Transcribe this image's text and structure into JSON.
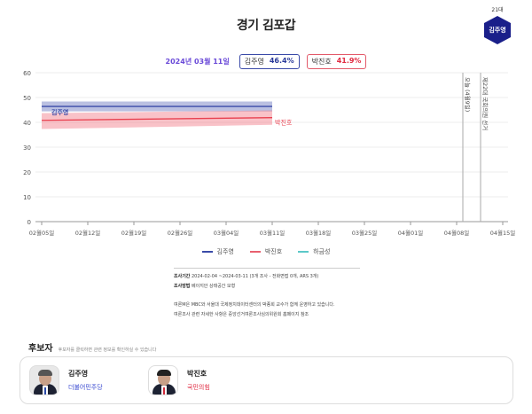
{
  "header": {
    "title": "경기 김포갑",
    "badge": {
      "era": "21대",
      "name": "김주영",
      "color": "#1a1f8a"
    }
  },
  "summary": {
    "date": "2024년 03월 11일",
    "results": [
      {
        "name": "김주영",
        "pct": "46.4%",
        "color": "#2a3a9a"
      },
      {
        "name": "박진호",
        "pct": "41.9%",
        "color": "#e02a40"
      }
    ]
  },
  "chart_data": {
    "type": "line",
    "title": "경기 김포갑",
    "xlabel": "",
    "ylabel": "",
    "ylim": [
      0,
      60
    ],
    "yticks": [
      0,
      10,
      20,
      30,
      40,
      50,
      60
    ],
    "grid": true,
    "x_tick_labels": [
      "02월05일",
      "02월12일",
      "02월19일",
      "02월26일",
      "03월04일",
      "03월11일",
      "03월18일",
      "03월25일",
      "04월01일",
      "04월08일",
      "04월15일"
    ],
    "x": [
      "02월05일",
      "03월11일"
    ],
    "series": [
      {
        "name": "김주영",
        "color": "#3a4aa8",
        "values": [
          46.4,
          46.4
        ],
        "band_low": [
          44.4,
          44.4
        ],
        "band_high": [
          48.4,
          48.4
        ],
        "label_position": "start"
      },
      {
        "name": "박진호",
        "color": "#e8404f",
        "values": [
          40.8,
          41.9
        ],
        "band_low": [
          37.3,
          39.0
        ],
        "band_high": [
          43.7,
          44.8
        ],
        "label_position": "end"
      },
      {
        "name": "하금성",
        "color": "#5cc8c8",
        "values": []
      }
    ],
    "annotations": [
      {
        "label": "오늘 (4월9일)",
        "x": "04월09일",
        "type": "vertical-line"
      },
      {
        "label": "제22대 국회의원 선거",
        "x": "04월10일",
        "type": "vertical-line"
      }
    ],
    "legend": {
      "position": "bottom",
      "entries": [
        "김주영",
        "박진호",
        "하금성"
      ]
    }
  },
  "legend": [
    {
      "name": "김주영",
      "color": "#3a4aa8"
    },
    {
      "name": "박진호",
      "color": "#e8606e"
    },
    {
      "name": "하금성",
      "color": "#5cc8c8"
    }
  ],
  "info": {
    "period_label": "조사기간",
    "period_value": "2024-02-04 ~2024-03-11 (3개 조사 - 전화면접 0개, ARS 3개)",
    "method_label": "조사방법",
    "method_value": "베이지안 상태공간 모형",
    "note1": "여론M은 MBC와 서울대 국제정치데이터센터의 박종희 교수가 함께 운영하고 있습니다.",
    "note2": "여론조사 관련 자세한 사항은 중앙선거여론조사심의위원회 홈페이지 참조"
  },
  "candidates": {
    "heading": "후보자",
    "subheading": "후보자를 클릭하면 관련 정보를 확인하실 수 있습니다",
    "items": [
      {
        "name": "김주영",
        "party": "더불어민주당",
        "party_color": "#3a4ad0",
        "tie_color": "#2a4aa8"
      },
      {
        "name": "박진호",
        "party": "국민의힘",
        "party_color": "#e02a40",
        "tie_color": "#d02a3a"
      }
    ]
  }
}
